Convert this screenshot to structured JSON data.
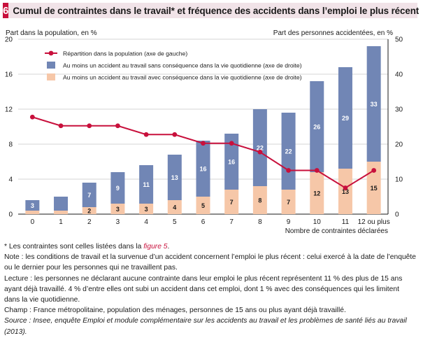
{
  "header": {
    "figure_number": "6",
    "title": "Cumul de contraintes dans le travail* et fréquence des accidents dans l’emploi le plus récent"
  },
  "colors": {
    "accent": "#c8103c",
    "header_bg": "#f1e3e8",
    "bar_no_consequence": "#7186b5",
    "bar_with_consequence": "#f6c7a8",
    "line": "#c8103c"
  },
  "chart_data": {
    "type": "bar",
    "stacked": true,
    "categories": [
      "0",
      "1",
      "2",
      "3",
      "4",
      "5",
      "6",
      "7",
      "8",
      "9",
      "10",
      "11",
      "12 ou plus"
    ],
    "xlabel": "Nombre de contraintes déclarées",
    "ylabel_left": "Part dans la population, en %",
    "ylabel_right": "Part des personnes accidentées, en %",
    "ylim_left": [
      0,
      20
    ],
    "yticks_left": [
      0,
      4,
      8,
      12,
      16,
      20
    ],
    "ylim_right": [
      0,
      50
    ],
    "yticks_right": [
      0,
      10,
      20,
      30,
      40,
      50
    ],
    "legend_position": "top-left",
    "series": [
      {
        "name": "Répartition dans la population (axe de gauche)",
        "type": "line",
        "axis": "left",
        "values": [
          11.1,
          10.1,
          10.1,
          10.1,
          9.1,
          9.1,
          8.1,
          8.1,
          7.1,
          5.0,
          5.0,
          3.0,
          5.0
        ]
      },
      {
        "name": "Au moins un accident au travail sans conséquence dans la vie quotidienne (axe de droite)",
        "type": "bar",
        "axis": "right",
        "values": [
          3,
          4,
          7,
          9,
          11,
          13,
          16,
          16,
          22,
          22,
          26,
          29,
          33
        ],
        "labels": [
          "3",
          "",
          "7",
          "9",
          "11",
          "13",
          "16",
          "16",
          "22",
          "22",
          "26",
          "29",
          "33"
        ]
      },
      {
        "name": "Au moins un accident au travail avec conséquence dans la vie quotidienne (axe de droite)",
        "type": "bar",
        "axis": "right",
        "values": [
          1,
          1,
          2,
          3,
          3,
          4,
          5,
          7,
          8,
          7,
          12,
          13,
          15
        ],
        "labels": [
          "",
          "",
          "2",
          "3",
          "3",
          "4",
          "5",
          "7",
          "8",
          "7",
          "12",
          "13",
          "15"
        ]
      }
    ]
  },
  "notes": {
    "asterisk_note_prefix": "* Les contraintes sont celles listées dans la ",
    "asterisk_note_ref": "figure 5",
    "asterisk_note_suffix": ".",
    "note": "Note : les conditions de travail et la survenue d’un accident concernent l’emploi le plus récent : celui exercé à la date de l’enquête ou le dernier pour les personnes qui ne travaillent pas.",
    "lecture": "Lecture : les personnes ne déclarant aucune contrainte dans leur emploi le plus récent représentent 11 % des plus de 15 ans ayant déjà travaillé. 4 % d’entre elles ont subi un accident dans cet emploi, dont 1 % avec des conséquences qui les limitent dans la vie quotidienne.",
    "champ": "Champ : France métropolitaine, population des ménages, personnes de 15 ans ou plus ayant déjà travaillé.",
    "source": "Source : Insee, enquête Emploi et module complémentaire sur les accidents au travail et les problèmes de santé liés au travail (2013)."
  }
}
